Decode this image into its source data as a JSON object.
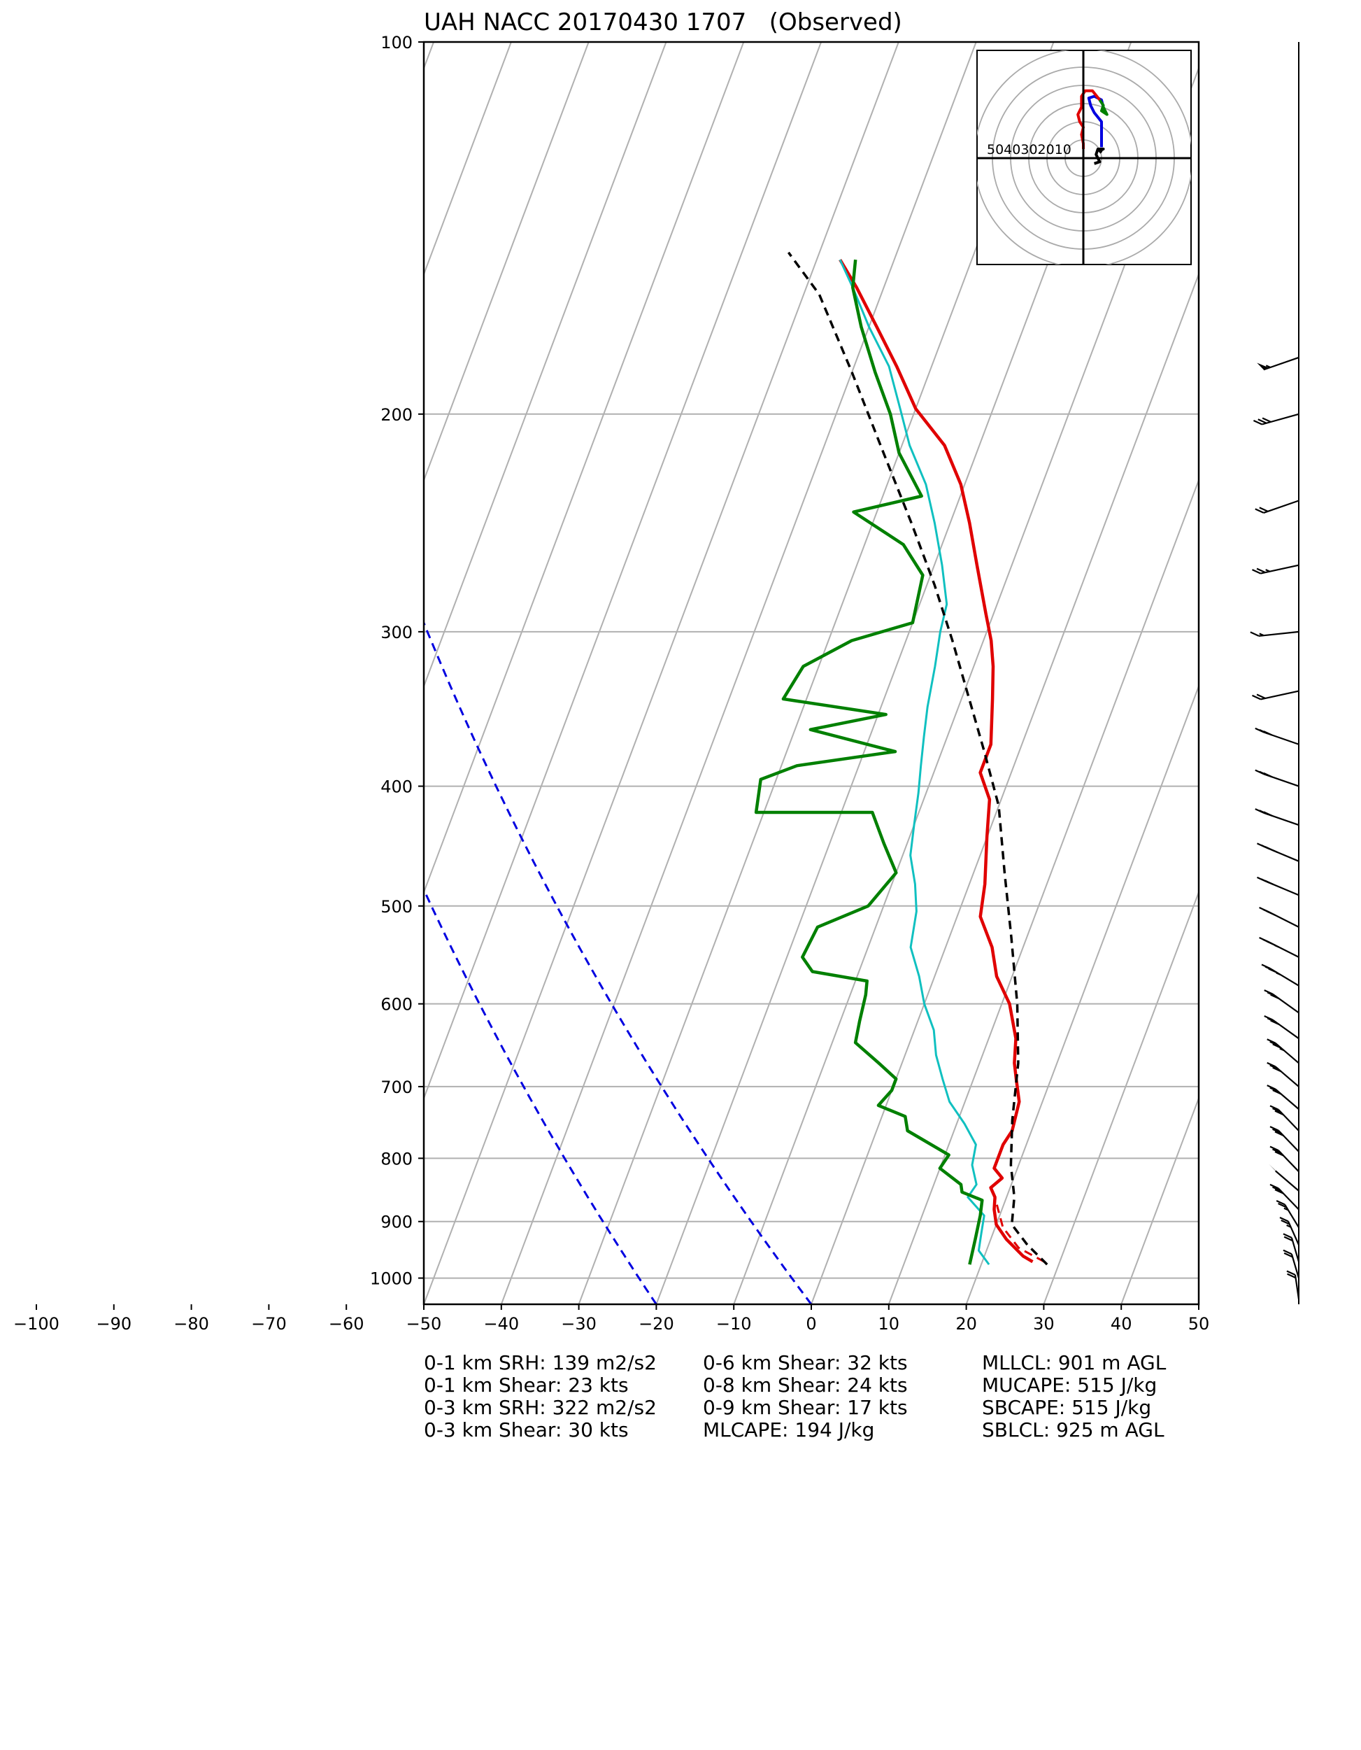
{
  "title": "UAH NACC 20170430 1707   (Observed)",
  "stats": {
    "col1": [
      "0-1 km SRH: 139 m2/s2",
      "0-1 km Shear: 23 kts",
      "0-3 km SRH: 322 m2/s2",
      "0-3 km Shear: 30 kts"
    ],
    "col2": [
      "0-6 km Shear: 32 kts",
      "0-8 km Shear: 24 kts",
      "0-9 km Shear: 17 kts",
      "MLCAPE: 194 J/kg"
    ],
    "col3": [
      "MLLCL: 901 m AGL",
      "MUCAPE: 515 J/kg",
      "SBCAPE: 515 J/kg",
      "SBLCL: 925 m AGL"
    ]
  },
  "chart_data": {
    "type": "line",
    "title": "UAH NACC 20170430 1707   (Observed)",
    "xlabel": "",
    "ylabel": "",
    "x_ticks": [
      -100,
      -90,
      -80,
      -70,
      -60,
      -50,
      -40,
      -30,
      -20,
      -10,
      0,
      10,
      20,
      30,
      40,
      50
    ],
    "xlim": [
      -50,
      50
    ],
    "y_ticks": [
      100,
      200,
      300,
      400,
      500,
      600,
      700,
      800,
      900,
      1000
    ],
    "ylim": [
      1050,
      100
    ],
    "y_scale": "log",
    "skew_per_decade": 60,
    "grid": true,
    "colors": {
      "temperature": "#e00000",
      "dewpoint": "#008000",
      "wetbulb": "#10c0c0",
      "parcel": "#000000",
      "dry_adiabat": "#0000e0",
      "isotherm": "#b0b0b0",
      "isobar": "#b0b0b0"
    },
    "series": [
      {
        "key": "temperature",
        "points": [
          [
            26.5,
            970
          ],
          [
            25,
            960
          ],
          [
            22,
            930
          ],
          [
            20,
            905
          ],
          [
            19,
            880
          ],
          [
            18.5,
            860
          ],
          [
            17.5,
            845
          ],
          [
            18.5,
            830
          ],
          [
            17,
            815
          ],
          [
            17,
            780
          ],
          [
            17.5,
            760
          ],
          [
            17,
            720
          ],
          [
            15.5,
            690
          ],
          [
            14.5,
            670
          ],
          [
            13.5,
            640
          ],
          [
            11,
            600
          ],
          [
            8,
            570
          ],
          [
            6,
            540
          ],
          [
            3,
            510
          ],
          [
            2,
            480
          ],
          [
            0,
            440
          ],
          [
            -1.5,
            410
          ],
          [
            -4,
            390
          ],
          [
            -4,
            370
          ],
          [
            -6,
            340
          ],
          [
            -7.5,
            320
          ],
          [
            -9,
            305
          ],
          [
            -11,
            290
          ],
          [
            -14.5,
            265
          ],
          [
            -17.5,
            245
          ],
          [
            -20.5,
            228
          ],
          [
            -24.5,
            212
          ],
          [
            -30,
            198
          ],
          [
            -34.5,
            183
          ],
          [
            -39,
            170
          ],
          [
            -43.5,
            158
          ],
          [
            -47,
            150
          ]
        ]
      },
      {
        "key": "temperature_virtual",
        "points": [
          [
            28,
            970
          ],
          [
            24,
            945
          ],
          [
            21,
            910
          ],
          [
            19.5,
            880
          ],
          [
            18.5,
            860
          ],
          [
            17.5,
            845
          ]
        ]
      },
      {
        "key": "wetbulb",
        "points": [
          [
            21,
            975
          ],
          [
            19,
            950
          ],
          [
            18.5,
            920
          ],
          [
            18,
            890
          ],
          [
            15,
            860
          ],
          [
            15.5,
            840
          ],
          [
            14,
            810
          ],
          [
            13.5,
            780
          ],
          [
            11,
            750
          ],
          [
            8,
            720
          ],
          [
            6,
            690
          ],
          [
            4,
            660
          ],
          [
            2.5,
            630
          ],
          [
            0,
            600
          ],
          [
            -2,
            570
          ],
          [
            -4.5,
            540
          ],
          [
            -5.5,
            505
          ],
          [
            -7,
            480
          ],
          [
            -9,
            455
          ],
          [
            -10,
            430
          ],
          [
            -11,
            405
          ],
          [
            -12,
            385
          ],
          [
            -13,
            365
          ],
          [
            -14,
            345
          ],
          [
            -15,
            320
          ],
          [
            -16,
            300
          ],
          [
            -16.5,
            285
          ],
          [
            -19,
            265
          ],
          [
            -22,
            245
          ],
          [
            -25,
            228
          ],
          [
            -29,
            212
          ],
          [
            -32,
            198
          ],
          [
            -35.5,
            183
          ],
          [
            -40,
            170
          ],
          [
            -44,
            158
          ],
          [
            -47,
            150
          ]
        ]
      },
      {
        "key": "dewpoint",
        "points": [
          [
            18.5,
            975
          ],
          [
            18,
            930
          ],
          [
            17.5,
            890
          ],
          [
            17,
            865
          ],
          [
            14,
            852
          ],
          [
            13.5,
            840
          ],
          [
            10,
            815
          ],
          [
            10.5,
            795
          ],
          [
            4,
            760
          ],
          [
            3,
            740
          ],
          [
            -1,
            725
          ],
          [
            0,
            705
          ],
          [
            0,
            690
          ],
          [
            -3,
            670
          ],
          [
            -7,
            645
          ],
          [
            -7.5,
            620
          ],
          [
            -8,
            590
          ],
          [
            -8.5,
            575
          ],
          [
            -16,
            565
          ],
          [
            -18,
            550
          ],
          [
            -17.5,
            520
          ],
          [
            -12,
            500
          ],
          [
            -10,
            470
          ],
          [
            -13,
            445
          ],
          [
            -16,
            420
          ],
          [
            -31,
            420
          ],
          [
            -32,
            395
          ],
          [
            -28,
            385
          ],
          [
            -16,
            375
          ],
          [
            -28,
            360
          ],
          [
            -19,
            350
          ],
          [
            -33,
            340
          ],
          [
            -32,
            320
          ],
          [
            -27,
            305
          ],
          [
            -20,
            295
          ],
          [
            -21,
            270
          ],
          [
            -25,
            255
          ],
          [
            -33,
            240
          ],
          [
            -25,
            233
          ],
          [
            -30,
            215
          ],
          [
            -33,
            200
          ],
          [
            -37,
            185
          ],
          [
            -41,
            170
          ],
          [
            -44,
            158
          ],
          [
            -45,
            150
          ]
        ]
      },
      {
        "key": "parcel",
        "points": [
          [
            28.5,
            975
          ],
          [
            25,
            940
          ],
          [
            22,
            905
          ],
          [
            21,
            860
          ],
          [
            19,
            810
          ],
          [
            17,
            745
          ],
          [
            15,
            670
          ],
          [
            12,
            600
          ],
          [
            8,
            530
          ],
          [
            4,
            470
          ],
          [
            0,
            415
          ],
          [
            -4.5,
            375
          ],
          [
            -9,
            340
          ],
          [
            -14,
            305
          ],
          [
            -19,
            275
          ],
          [
            -25,
            245
          ],
          [
            -32,
            215
          ],
          [
            -40,
            185
          ],
          [
            -48,
            160
          ],
          [
            -54,
            148
          ]
        ]
      }
    ],
    "dry_adiabats_dashed": [
      {
        "start_temp_c": -20,
        "start_p": 1050
      },
      {
        "start_temp_c": 0,
        "start_p": 1050
      }
    ],
    "hodograph": {
      "rings": [
        10,
        20,
        30,
        40,
        50,
        60
      ],
      "ring_labels": [
        "50",
        "40",
        "30",
        "20",
        "10"
      ],
      "traces": [
        {
          "color": "#000000",
          "points": [
            [
              6,
              3
            ],
            [
              9,
              2
            ],
            [
              7,
              -2
            ],
            [
              8,
              -5
            ],
            [
              11,
              -5
            ],
            [
              9,
              -4
            ],
            [
              10,
              -3
            ]
          ]
        },
        {
          "color": "#0000e0",
          "points": [
            [
              10,
              -6
            ],
            [
              10,
              -20
            ],
            [
              6,
              -25
            ],
            [
              4,
              -29
            ],
            [
              3,
              -33
            ],
            [
              6,
              -34
            ],
            [
              10,
              -32
            ],
            [
              11,
              -28
            ]
          ]
        },
        {
          "color": "#008000",
          "points": [
            [
              11,
              -28
            ],
            [
              13,
              -24
            ],
            [
              10,
              -26
            ],
            [
              11,
              -29
            ],
            [
              9,
              -32
            ]
          ]
        },
        {
          "color": "#e00000",
          "points": [
            [
              9,
              -32
            ],
            [
              5,
              -37
            ],
            [
              1,
              -37
            ],
            [
              -1,
              -34
            ],
            [
              -1,
              -28
            ],
            [
              -3,
              -24
            ],
            [
              -2,
              -20
            ],
            [
              0,
              -17
            ],
            [
              -1,
              -13
            ],
            [
              0,
              -8
            ],
            [
              0,
              -5
            ]
          ]
        }
      ]
    },
    "barbs": [
      {
        "p": 180,
        "dir": 300,
        "spd": 55
      },
      {
        "p": 200,
        "dir": 295,
        "spd": 30
      },
      {
        "p": 235,
        "dir": 300,
        "spd": 20
      },
      {
        "p": 265,
        "dir": 290,
        "spd": 25
      },
      {
        "p": 300,
        "dir": 280,
        "spd": 15
      },
      {
        "p": 335,
        "dir": 290,
        "spd": 20
      },
      {
        "p": 370,
        "dir": 240,
        "spd": 30
      },
      {
        "p": 400,
        "dir": 240,
        "spd": 30
      },
      {
        "p": 430,
        "dir": 240,
        "spd": 30
      },
      {
        "p": 460,
        "dir": 235,
        "spd": 35
      },
      {
        "p": 490,
        "dir": 235,
        "spd": 30
      },
      {
        "p": 520,
        "dir": 230,
        "spd": 30
      },
      {
        "p": 550,
        "dir": 230,
        "spd": 35
      },
      {
        "p": 580,
        "dir": 225,
        "spd": 35
      },
      {
        "p": 610,
        "dir": 220,
        "spd": 30
      },
      {
        "p": 640,
        "dir": 220,
        "spd": 30
      },
      {
        "p": 670,
        "dir": 215,
        "spd": 35
      },
      {
        "p": 700,
        "dir": 215,
        "spd": 30
      },
      {
        "p": 730,
        "dir": 215,
        "spd": 30
      },
      {
        "p": 760,
        "dir": 210,
        "spd": 30
      },
      {
        "p": 790,
        "dir": 210,
        "spd": 30
      },
      {
        "p": 820,
        "dir": 210,
        "spd": 30
      },
      {
        "p": 850,
        "dir": 215,
        "spd": 50
      },
      {
        "p": 880,
        "dir": 210,
        "spd": 30
      },
      {
        "p": 910,
        "dir": 200,
        "spd": 25
      },
      {
        "p": 940,
        "dir": 195,
        "spd": 25
      },
      {
        "p": 970,
        "dir": 190,
        "spd": 20
      },
      {
        "p": 1000,
        "dir": 190,
        "spd": 20
      },
      {
        "p": 1040,
        "dir": 185,
        "spd": 20
      }
    ]
  }
}
